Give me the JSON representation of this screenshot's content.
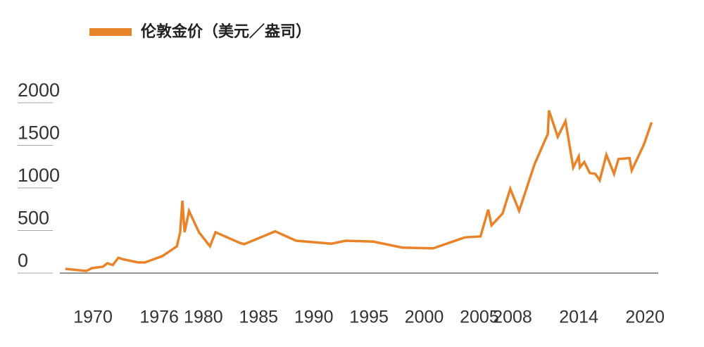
{
  "chart_data": {
    "type": "line",
    "x": [
      1967.5,
      1969.4,
      1969.9,
      1970.9,
      1971.3,
      1971.8,
      1972.3,
      1972.8,
      1974.1,
      1974.7,
      1976.3,
      1977.6,
      1977.9,
      1978.1,
      1978.3,
      1978.7,
      1979.6,
      1980.6,
      1981.1,
      1983.3,
      1983.7,
      1986.5,
      1988.4,
      1991.6,
      1992.9,
      1995.4,
      1998.0,
      2000.8,
      2003.7,
      2005.1,
      2005.8,
      2006.1,
      2007.1,
      2007.8,
      2008.6,
      2010.0,
      2011.2,
      2011.3,
      2012.1,
      2012.8,
      2013.5,
      2014.0,
      2014.1,
      2014.5,
      2015.0,
      2015.5,
      2015.9,
      2016.5,
      2017.2,
      2017.6,
      2018.6,
      2018.8,
      2019.9,
      2020.6
    ],
    "series": [
      {
        "name": "伦敦金价（美元／盎司）",
        "color": "#e8832a",
        "values": [
          50,
          25,
          58,
          75,
          115,
          95,
          180,
          160,
          125,
          125,
          200,
          315,
          480,
          850,
          480,
          730,
          480,
          315,
          480,
          355,
          340,
          490,
          380,
          345,
          380,
          370,
          300,
          290,
          420,
          430,
          745,
          560,
          700,
          990,
          730,
          1280,
          1635,
          1910,
          1600,
          1785,
          1240,
          1370,
          1240,
          1305,
          1175,
          1165,
          1090,
          1390,
          1165,
          1340,
          1350,
          1205,
          1510,
          1770
        ]
      }
    ],
    "xlim": [
      1967,
      2021.2
    ],
    "xticks": [
      1970,
      1976,
      1980,
      1985,
      1990,
      1995,
      2000,
      2005,
      2008,
      2014,
      2020
    ],
    "ylim": [
      0,
      2000
    ],
    "yticks": [
      0,
      500,
      1000,
      1500,
      2000
    ]
  }
}
